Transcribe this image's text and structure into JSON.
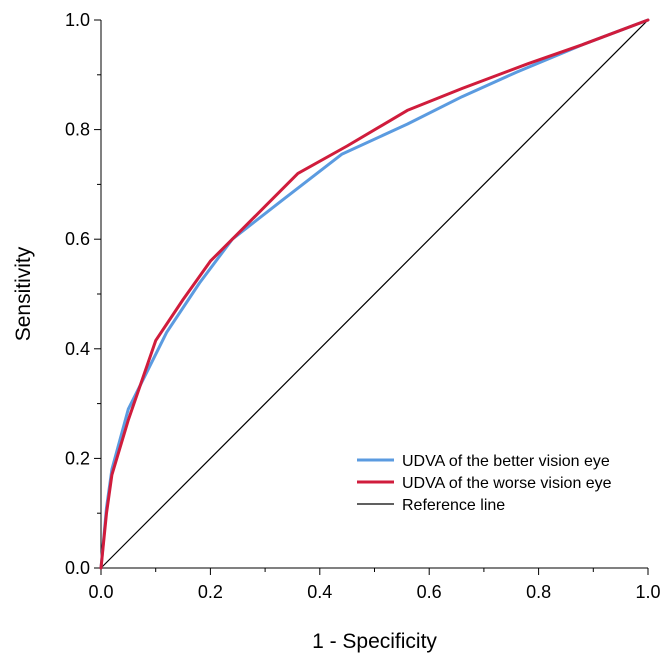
{
  "chart_data": {
    "type": "line",
    "title": "",
    "xlabel": "1 - Specificity",
    "ylabel": "Sensitivity",
    "xlim": [
      0,
      1
    ],
    "ylim": [
      0,
      1
    ],
    "x_ticks": [
      "0.0",
      "0.2",
      "0.4",
      "0.6",
      "0.8",
      "1.0"
    ],
    "y_ticks": [
      "0.0",
      "0.2",
      "0.4",
      "0.6",
      "0.8",
      "1.0"
    ],
    "grid": false,
    "legend_position": "bottom-right",
    "series": [
      {
        "name": "UDVA of the better vision eye",
        "color": "#5B9BE0",
        "x": [
          0,
          0.01,
          0.02,
          0.05,
          0.08,
          0.12,
          0.18,
          0.24,
          0.33,
          0.44,
          0.56,
          0.66,
          0.76,
          0.88,
          1.0
        ],
        "y": [
          0,
          0.11,
          0.18,
          0.29,
          0.35,
          0.43,
          0.52,
          0.6,
          0.67,
          0.755,
          0.81,
          0.86,
          0.905,
          0.955,
          1.0
        ]
      },
      {
        "name": "UDVA of the worse vision eye",
        "color": "#D01C3C",
        "x": [
          0,
          0.01,
          0.02,
          0.05,
          0.1,
          0.15,
          0.2,
          0.25,
          0.3,
          0.36,
          0.45,
          0.56,
          0.66,
          0.78,
          0.88,
          1.0
        ],
        "y": [
          0,
          0.1,
          0.17,
          0.27,
          0.415,
          0.49,
          0.56,
          0.61,
          0.66,
          0.72,
          0.77,
          0.835,
          0.875,
          0.92,
          0.955,
          1.0
        ]
      },
      {
        "name": "Reference line",
        "color": "#000000",
        "x": [
          0,
          1
        ],
        "y": [
          0,
          1
        ]
      }
    ]
  }
}
